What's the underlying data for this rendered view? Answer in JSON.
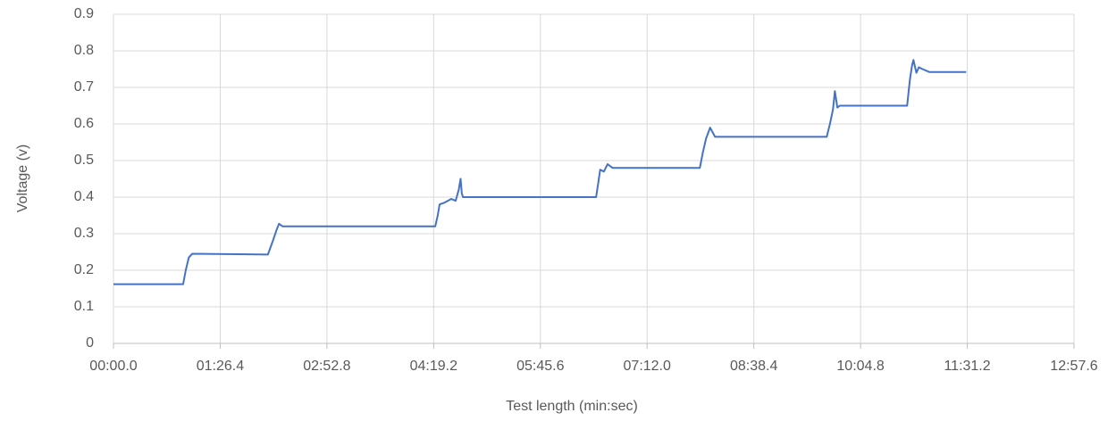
{
  "chart_data": {
    "type": "line",
    "x_label": "Test length (min:sec)",
    "y_label": "Voltage (v)",
    "x": [
      0,
      56.4,
      58.5,
      61,
      63.7,
      125,
      129,
      132,
      134,
      137,
      260.5,
      262.5,
      264,
      268,
      273.5,
      277,
      279.5,
      281,
      282,
      283,
      390.7,
      392.5,
      394,
      397,
      400,
      404,
      474.7,
      477,
      479.7,
      483,
      487,
      577.4,
      580,
      582.5,
      584,
      586,
      588,
      642.5,
      644.7,
      646.5,
      647.6,
      650,
      652,
      655,
      660.6,
      690.3
    ],
    "series": [
      {
        "name": "Voltage",
        "color": "#4472c4",
        "values": [
          0.162,
          0.162,
          0.2,
          0.235,
          0.245,
          0.243,
          0.28,
          0.31,
          0.327,
          0.32,
          0.32,
          0.35,
          0.38,
          0.385,
          0.395,
          0.39,
          0.42,
          0.45,
          0.41,
          0.4,
          0.4,
          0.44,
          0.475,
          0.47,
          0.49,
          0.48,
          0.48,
          0.52,
          0.56,
          0.59,
          0.565,
          0.565,
          0.6,
          0.64,
          0.69,
          0.645,
          0.65,
          0.65,
          0.72,
          0.76,
          0.775,
          0.74,
          0.755,
          0.75,
          0.742,
          0.742
        ]
      }
    ],
    "xlim": [
      0,
      777.6
    ],
    "xticks": [
      {
        "value": 0,
        "label": "00:00.0"
      },
      {
        "value": 86.4,
        "label": "01:26.4"
      },
      {
        "value": 172.8,
        "label": "02:52.8"
      },
      {
        "value": 259.2,
        "label": "04:19.2"
      },
      {
        "value": 345.6,
        "label": "05:45.6"
      },
      {
        "value": 432,
        "label": "07:12.0"
      },
      {
        "value": 518.4,
        "label": "08:38.4"
      },
      {
        "value": 604.8,
        "label": "10:04.8"
      },
      {
        "value": 691.2,
        "label": "11:31.2"
      },
      {
        "value": 777.6,
        "label": "12:57.6"
      }
    ],
    "ylim": [
      0,
      0.9
    ],
    "yticks": [
      0,
      0.1,
      0.2,
      0.3,
      0.4,
      0.5,
      0.6,
      0.7,
      0.8,
      0.9
    ],
    "grid": true
  }
}
